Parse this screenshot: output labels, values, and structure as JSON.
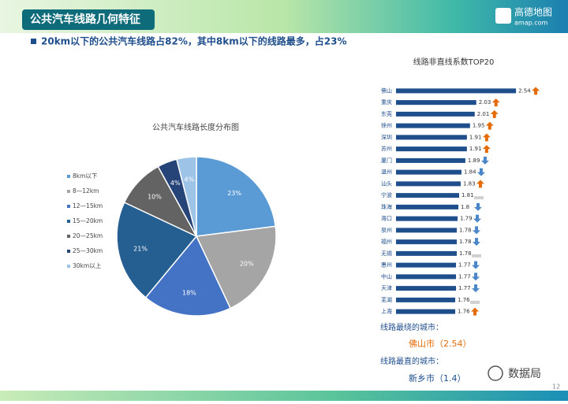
{
  "header": {
    "title": "公共汽车线路几何特征",
    "logo": "高德地图",
    "logo_sub": "amap.com",
    "subtitle": "20km以下的公共汽车线路占82%，其中8km以下的线路最多，占23%"
  },
  "chart_data": [
    {
      "type": "pie",
      "title": "公共汽车线路长度分布图",
      "categories": [
        "8km以下",
        "8—12km",
        "12—15km",
        "15—20km",
        "20—25km",
        "25—30km",
        "30km以上"
      ],
      "values": [
        23,
        20,
        18,
        21,
        10,
        4,
        4
      ],
      "value_labels": [
        "23%",
        "20%",
        "18%",
        "21%",
        "10%",
        "4%",
        "4%"
      ],
      "colors": [
        "#5b9bd5",
        "#a5a5a5",
        "#4472c4",
        "#255e91",
        "#636363",
        "#264478",
        "#9dc3e6"
      ]
    },
    {
      "type": "hbar",
      "title": "线路非直线系数TOP20",
      "categories": [
        "佛山",
        "重庆",
        "东莞",
        "徐州",
        "深圳",
        "苏州",
        "厦门",
        "温州",
        "汕头",
        "宁波",
        "珠海",
        "海口",
        "泉州",
        "福州",
        "无锡",
        "惠州",
        "中山",
        "天津",
        "芜湖",
        "上海"
      ],
      "values": [
        2.54,
        2.03,
        2.01,
        1.95,
        1.91,
        1.91,
        1.89,
        1.84,
        1.83,
        1.81,
        1.8,
        1.79,
        1.78,
        1.78,
        1.78,
        1.77,
        1.77,
        1.77,
        1.76,
        1.76
      ],
      "trend": [
        "up",
        "up",
        "up",
        "up",
        "up",
        "up",
        "down",
        "down",
        "up",
        "flat",
        "down",
        "down",
        "down",
        "down",
        "flat",
        "down",
        "down",
        "down",
        "flat",
        "up"
      ],
      "color": "#1f4e8c",
      "xlim": [
        1,
        2.6
      ]
    }
  ],
  "notes": {
    "max_label": "线路最绕的城市：",
    "max_value": "佛山市（2.54）",
    "min_label": "线路最直的城市：",
    "min_value": "新乡市（1.4）"
  },
  "footer": {
    "watermark": "数据局",
    "page": "12"
  }
}
